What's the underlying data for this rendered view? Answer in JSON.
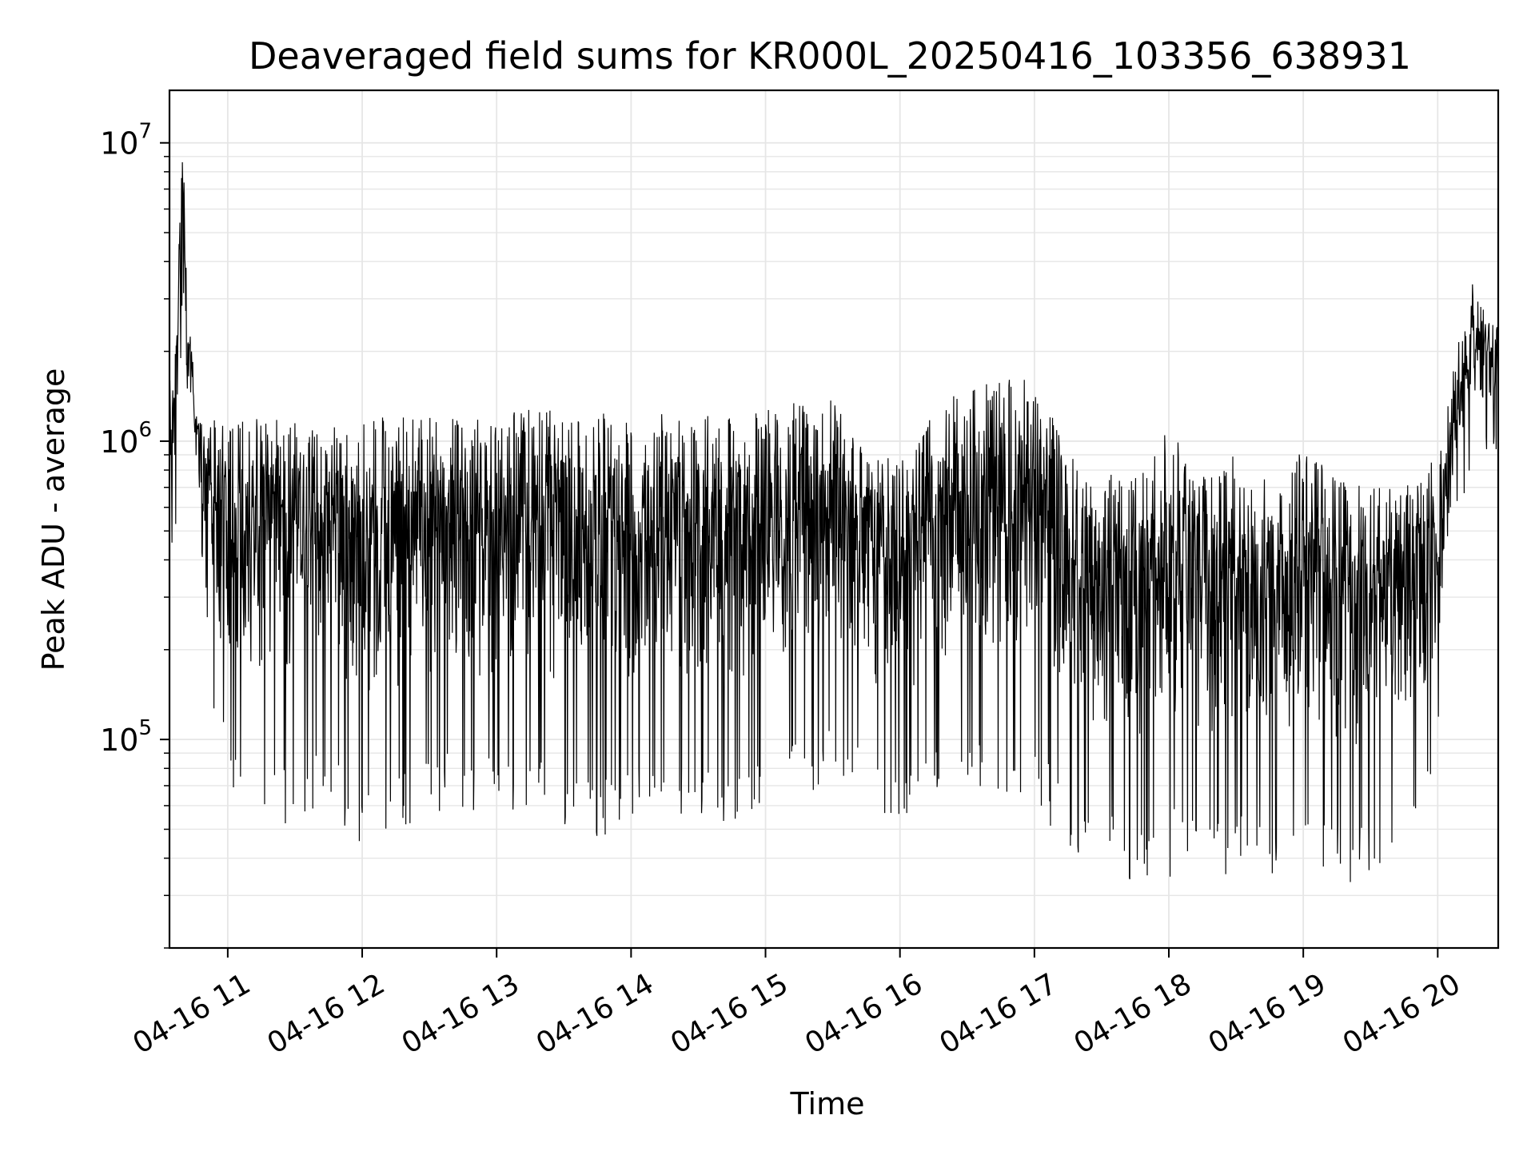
{
  "chart_data": {
    "type": "line",
    "title": "Deaveraged field sums for KR000L_20250416_103356_638931",
    "xlabel": "Time",
    "ylabel": "Peak ADU - average",
    "yscale": "log",
    "ylim": [
      20000,
      15000000
    ],
    "xlim": [
      "2025-04-16 10:34",
      "2025-04-16 20:27"
    ],
    "grid": true,
    "colors": {
      "line": "#000000",
      "grid": "#e6e6e6",
      "axes": "#000000"
    },
    "x_ticks": [
      {
        "value": "2025-04-16 11:00",
        "label": "04-16 11"
      },
      {
        "value": "2025-04-16 12:00",
        "label": "04-16 12"
      },
      {
        "value": "2025-04-16 13:00",
        "label": "04-16 13"
      },
      {
        "value": "2025-04-16 14:00",
        "label": "04-16 14"
      },
      {
        "value": "2025-04-16 15:00",
        "label": "04-16 15"
      },
      {
        "value": "2025-04-16 16:00",
        "label": "04-16 16"
      },
      {
        "value": "2025-04-16 17:00",
        "label": "04-16 17"
      },
      {
        "value": "2025-04-16 18:00",
        "label": "04-16 18"
      },
      {
        "value": "2025-04-16 19:00",
        "label": "04-16 19"
      },
      {
        "value": "2025-04-16 20:00",
        "label": "04-16 20"
      }
    ],
    "y_ticks": [
      {
        "value": 100000,
        "base": "10",
        "exp": "5"
      },
      {
        "value": 1000000,
        "base": "10",
        "exp": "6"
      },
      {
        "value": 10000000,
        "base": "10",
        "exp": "7"
      }
    ],
    "series": [
      {
        "x": [
          "2025-04-16 10:34",
          "2025-04-16 10:36",
          "2025-04-16 10:38",
          "2025-04-16 10:40",
          "2025-04-16 10:42",
          "2025-04-16 10:44",
          "2025-04-16 10:46",
          "2025-04-16 10:48",
          "2025-04-16 10:50",
          "2025-04-16 10:54",
          "2025-04-16 10:58",
          "2025-04-16 11:05",
          "2025-04-16 11:15",
          "2025-04-16 11:30",
          "2025-04-16 11:45",
          "2025-04-16 12:00",
          "2025-04-16 12:15",
          "2025-04-16 12:30",
          "2025-04-16 12:45",
          "2025-04-16 13:00",
          "2025-04-16 13:15",
          "2025-04-16 13:30",
          "2025-04-16 13:45",
          "2025-04-16 14:00",
          "2025-04-16 14:15",
          "2025-04-16 14:30",
          "2025-04-16 14:45",
          "2025-04-16 15:00",
          "2025-04-16 15:15",
          "2025-04-16 15:30",
          "2025-04-16 15:45",
          "2025-04-16 16:00",
          "2025-04-16 16:15",
          "2025-04-16 16:30",
          "2025-04-16 16:45",
          "2025-04-16 17:00",
          "2025-04-16 17:15",
          "2025-04-16 17:30",
          "2025-04-16 17:45",
          "2025-04-16 18:00",
          "2025-04-16 18:15",
          "2025-04-16 18:30",
          "2025-04-16 18:45",
          "2025-04-16 19:00",
          "2025-04-16 19:15",
          "2025-04-16 19:30",
          "2025-04-16 19:45",
          "2025-04-16 20:00",
          "2025-04-16 20:08",
          "2025-04-16 20:15",
          "2025-04-16 20:22",
          "2025-04-16 20:27"
        ],
        "high": [
          1700000,
          1800000,
          4500000,
          10500000,
          2600000,
          2300000,
          1400000,
          1200000,
          1200000,
          1300000,
          1250000,
          1200000,
          1300000,
          1150000,
          1100000,
          1250000,
          1200000,
          1250000,
          1200000,
          1200000,
          1300000,
          1250000,
          1250000,
          1200000,
          1250000,
          1200000,
          1250000,
          1300000,
          1350000,
          1400000,
          950000,
          850000,
          1300000,
          1500000,
          1600000,
          1700000,
          900000,
          800000,
          750000,
          1100000,
          800000,
          900000,
          800000,
          950000,
          750000,
          700000,
          700000,
          900000,
          2000000,
          3500000,
          2600000,
          2400000
        ],
        "low": [
          350000,
          400000,
          600000,
          800000,
          900000,
          800000,
          500000,
          450000,
          300000,
          100000,
          75000,
          60000,
          45000,
          50000,
          55000,
          40000,
          45000,
          50000,
          55000,
          50000,
          55000,
          45000,
          40000,
          45000,
          55000,
          50000,
          45000,
          55000,
          60000,
          65000,
          55000,
          45000,
          60000,
          65000,
          60000,
          55000,
          40000,
          35000,
          30000,
          32000,
          35000,
          32000,
          30000,
          32000,
          30000,
          32000,
          35000,
          80000,
          500000,
          800000,
          900000,
          900000
        ]
      }
    ]
  }
}
